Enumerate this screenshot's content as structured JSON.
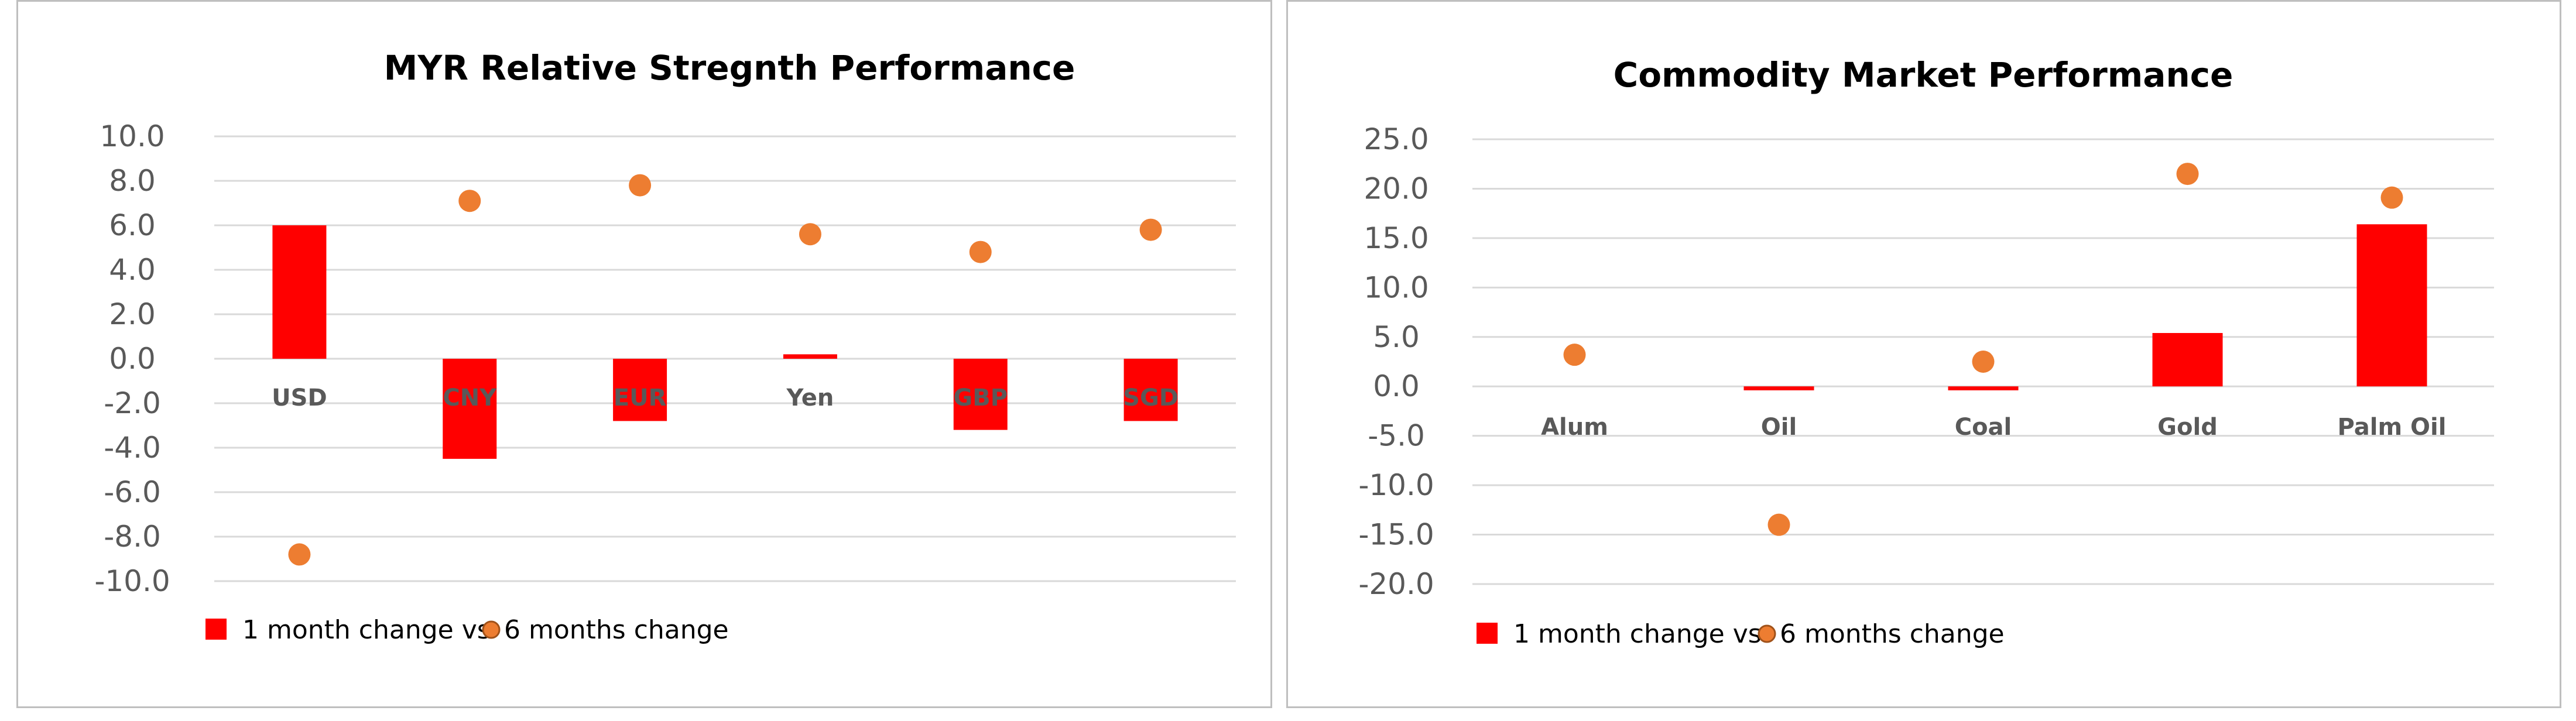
{
  "chart_data": [
    {
      "type": "bar+scatter",
      "title": "MYR Relative Stregnth Performance",
      "categories": [
        "USD",
        "CNY",
        "EUR",
        "Yen",
        "GBP",
        "SGD"
      ],
      "ylim": [
        -10,
        10
      ],
      "yticks": [
        10,
        8,
        6,
        4,
        2,
        0,
        -2,
        -4,
        -6,
        -8,
        -10
      ],
      "ytick_labels": [
        "10.0",
        "8.0",
        "6.0",
        "4.0",
        "2.0",
        "0.0",
        "-2.0",
        "-4.0",
        "-6.0",
        "-8.0",
        "-10.0"
      ],
      "series": [
        {
          "name": "1 month change vs",
          "kind": "bar",
          "color": "#ff0000",
          "values": [
            6.0,
            -4.5,
            -2.8,
            0.2,
            -3.2,
            -2.8
          ]
        },
        {
          "name": "6 months change",
          "kind": "dot",
          "color": "#ed7d31",
          "values": [
            -8.8,
            7.1,
            7.8,
            5.6,
            4.8,
            5.8
          ]
        }
      ],
      "grid": true,
      "legend": "bottom-left"
    },
    {
      "type": "bar+scatter",
      "title": "Commodity Market Performance",
      "categories": [
        "Alum",
        "Oil",
        "Coal",
        "Gold",
        "Palm Oil"
      ],
      "ylim": [
        -20,
        25
      ],
      "yticks": [
        25,
        20,
        15,
        10,
        5,
        0,
        -5,
        -10,
        -15,
        -20
      ],
      "ytick_labels": [
        "25.0",
        "20.0",
        "15.0",
        "10.0",
        "5.0",
        "0.0",
        "-5.0",
        "-10.0",
        "-15.0",
        "-20.0"
      ],
      "series": [
        {
          "name": "1 month change vs",
          "kind": "bar",
          "color": "#ff0000",
          "values": [
            0.0,
            -0.4,
            -0.4,
            5.4,
            16.4
          ]
        },
        {
          "name": "6 months change",
          "kind": "dot",
          "color": "#ed7d31",
          "values": [
            3.2,
            -14.0,
            2.5,
            21.5,
            19.1
          ]
        }
      ],
      "grid": true,
      "legend": "bottom-left"
    }
  ]
}
